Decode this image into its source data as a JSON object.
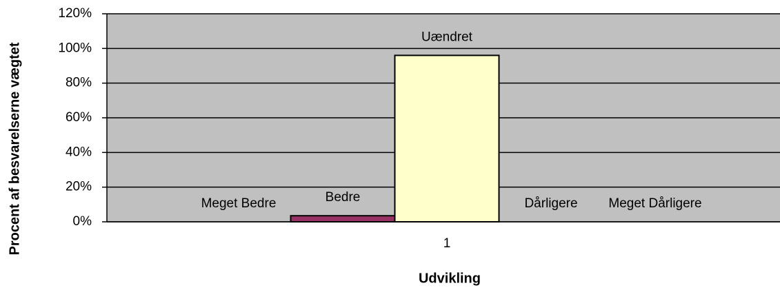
{
  "chart_data": {
    "type": "bar",
    "x_label": "Udvikling",
    "y_label": "Procent af besvarelserne vægtet",
    "categories": [
      "1"
    ],
    "series": [
      {
        "name": "Meget Bedre",
        "color": "#9999ff",
        "values": [
          0
        ]
      },
      {
        "name": "Bedre",
        "color": "#993366",
        "values": [
          3.5
        ]
      },
      {
        "name": "Uændret",
        "color": "#ffffcc",
        "values": [
          96
        ]
      },
      {
        "name": "Dårligere",
        "color": "#ccffff",
        "values": [
          0
        ]
      },
      {
        "name": "Meget Dårligere",
        "color": "#660066",
        "values": [
          0
        ]
      }
    ],
    "ylim": [
      0,
      120
    ],
    "yticks": [
      {
        "value": 0,
        "label": "0%"
      },
      {
        "value": 20,
        "label": "20%"
      },
      {
        "value": 40,
        "label": "40%"
      },
      {
        "value": 60,
        "label": "60%"
      },
      {
        "value": 80,
        "label": "80%"
      },
      {
        "value": 100,
        "label": "100%"
      },
      {
        "value": 120,
        "label": "120%"
      }
    ],
    "grid": true,
    "plot_background": "#c0c0c0"
  }
}
